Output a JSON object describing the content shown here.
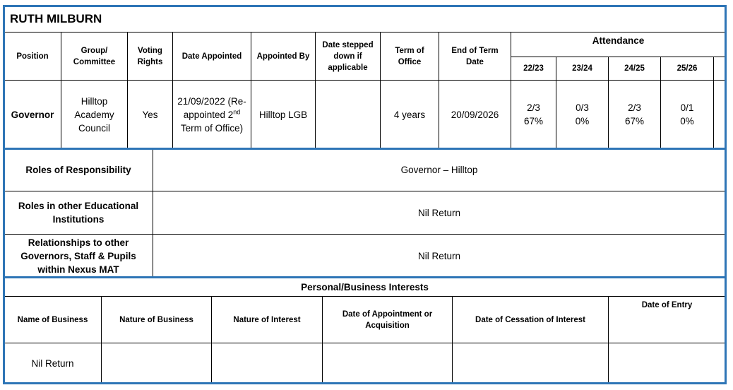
{
  "title": "RUTH MILBURN",
  "appointment": {
    "headers": [
      "Position",
      "Group/ Committee",
      "Voting Rights",
      "Date Appointed",
      "Appointed By",
      "Date stepped down if applicable",
      "Term of Office",
      "End of Term Date"
    ],
    "attendance_header": "Attendance",
    "attendance_years": [
      "22/23",
      "23/24",
      "24/25",
      "25/26"
    ],
    "row": {
      "position": "Governor",
      "group": "Hilltop Academy Council",
      "voting_rights": "Yes",
      "date_appointed": {
        "before": "21/09/2022 (Re-appointed 2",
        "sup": "nd",
        "after": "Term of Office)"
      },
      "appointed_by": "Hilltop LGB",
      "term_of_office": "4 years",
      "end_of_term": "20/09/2026",
      "attendance": [
        {
          "fraction": "2/3",
          "percent": "67%"
        },
        {
          "fraction": "0/3",
          "percent": "0%"
        },
        {
          "fraction": "2/3",
          "percent": "67%"
        },
        {
          "fraction": "0/1",
          "percent": "0%"
        }
      ]
    }
  },
  "roles": [
    {
      "label": "Roles of Responsibility",
      "value": "Governor – Hilltop"
    },
    {
      "label": "Roles in other Educational Institutions",
      "value": "Nil Return"
    },
    {
      "label": "Relationships to other Governors, Staff & Pupils within Nexus MAT",
      "value": "Nil Return"
    }
  ],
  "interests": {
    "title": "Personal/Business Interests",
    "headers": [
      "Name of Business",
      "Nature of Business",
      "Nature of Interest",
      "Date of Appointment or Acquisition",
      "Date of Cessation of Interest",
      "Date of Entry"
    ],
    "rows": [
      [
        "Nil Return"
      ]
    ]
  }
}
